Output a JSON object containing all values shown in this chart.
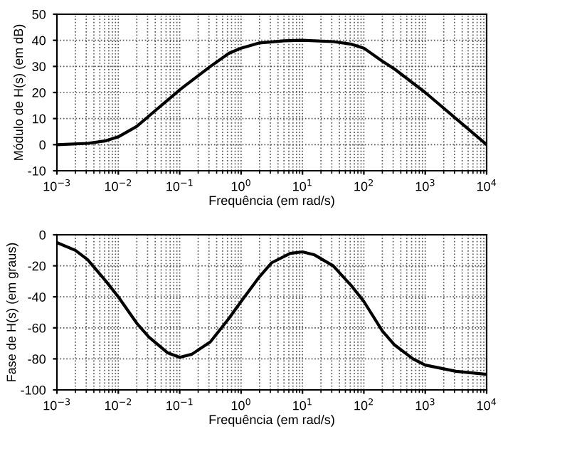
{
  "chart_data": [
    {
      "type": "line",
      "xlabel": "Frequência (em rad/s)",
      "ylabel": "Módulo de H(s) (em dB)",
      "log": "x",
      "grid": true,
      "marker": "none",
      "line_style": "solid",
      "xlim": [
        0.001,
        10000
      ],
      "xticks": [
        {
          "value": 0.001,
          "label": "10$^{−3}$"
        },
        {
          "value": 0.01,
          "label": "10$^{−2}$"
        },
        {
          "value": 0.1,
          "label": "10$^{−1}$"
        },
        {
          "value": 1,
          "label": "10$^{0}$"
        },
        {
          "value": 10,
          "label": "10$^{1}$"
        },
        {
          "value": 100,
          "label": "10$^{2}$"
        },
        {
          "value": 1000,
          "label": "10$^{3}$"
        },
        {
          "value": 10000,
          "label": "10$^{4}$"
        }
      ],
      "ylim": [
        -10,
        50
      ],
      "yticks": [
        -10,
        0,
        10,
        20,
        30,
        40,
        50
      ],
      "series": [
        {
          "color": "#000000",
          "x": [
            0.001,
            0.00316,
            0.00631,
            0.01,
            0.02,
            0.0316,
            0.1,
            0.316,
            0.631,
            1,
            2,
            5,
            10,
            31.6,
            63.1,
            100,
            200,
            316,
            1000,
            3160,
            10000
          ],
          "values": [
            0,
            0.5,
            1.5,
            3,
            7,
            11,
            21,
            30,
            35,
            37,
            39,
            39.8,
            40,
            39.5,
            38.5,
            37,
            32,
            29,
            20,
            10,
            0
          ]
        }
      ]
    },
    {
      "type": "line",
      "xlabel": "Frequência (em rad/s)",
      "ylabel": "Fase de H(s) (em graus)",
      "log": "x",
      "grid": true,
      "marker": "none",
      "line_style": "solid",
      "xlim": [
        0.001,
        10000
      ],
      "xticks": [
        {
          "value": 0.001,
          "label": "10$^{−3}$"
        },
        {
          "value": 0.01,
          "label": "10$^{−2}$"
        },
        {
          "value": 0.1,
          "label": "10$^{−1}$"
        },
        {
          "value": 1,
          "label": "10$^{0}$"
        },
        {
          "value": 10,
          "label": "10$^{1}$"
        },
        {
          "value": 100,
          "label": "10$^{2}$"
        },
        {
          "value": 1000,
          "label": "10$^{3}$"
        },
        {
          "value": 10000,
          "label": "10$^{4}$"
        }
      ],
      "ylim": [
        -100,
        0
      ],
      "yticks": [
        -100,
        -80,
        -60,
        -40,
        -20,
        0
      ],
      "series": [
        {
          "color": "#000000",
          "x": [
            0.001,
            0.002,
            0.00316,
            0.00631,
            0.01,
            0.02,
            0.0316,
            0.0631,
            0.1,
            0.158,
            0.316,
            0.631,
            1,
            2,
            3.16,
            6.31,
            10,
            15.8,
            31.6,
            63.1,
            100,
            200,
            316,
            631,
            1000,
            3160,
            10000
          ],
          "values": [
            -5,
            -10,
            -16,
            -30,
            -40,
            -57,
            -66,
            -76,
            -79,
            -77,
            -69,
            -54,
            -43,
            -27,
            -18,
            -12,
            -11,
            -13,
            -20,
            -33,
            -43,
            -62,
            -71,
            -80,
            -84,
            -88,
            -90
          ]
        }
      ]
    }
  ]
}
